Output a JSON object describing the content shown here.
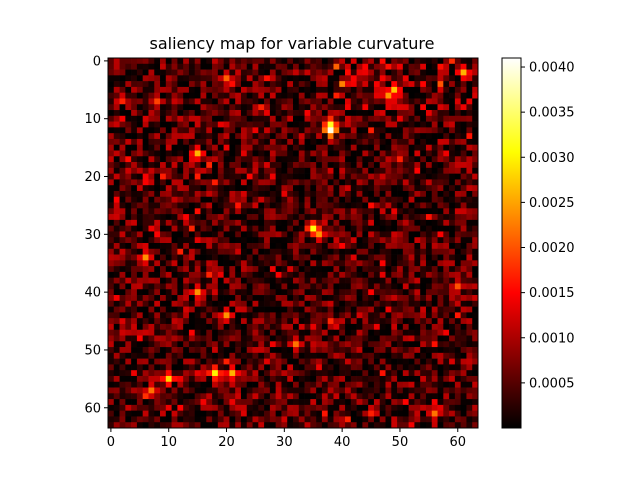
{
  "chart_data": {
    "type": "heatmap",
    "title": "saliency map for variable curvature",
    "xlabel": "",
    "ylabel": "",
    "rows": 64,
    "cols": 64,
    "xlim": [
      -0.5,
      63.5
    ],
    "ylim": [
      63.5,
      -0.5
    ],
    "x_ticks": [
      0,
      10,
      20,
      30,
      40,
      50,
      60
    ],
    "y_ticks": [
      0,
      10,
      20,
      30,
      40,
      50,
      60
    ],
    "colormap": "hot",
    "vmin": 0.0,
    "vmax": 0.0041,
    "colorbar_ticks": [
      "0.0005",
      "0.0010",
      "0.0015",
      "0.0020",
      "0.0025",
      "0.0030",
      "0.0035",
      "0.0040"
    ],
    "colorbar_tick_values": [
      0.0005,
      0.001,
      0.0015,
      0.002,
      0.0025,
      0.003,
      0.0035,
      0.004
    ],
    "value_note": "values approximated; dense noisy saliency map with typical values 0–0.0015",
    "hotspots": [
      {
        "row": 12,
        "col": 38,
        "value": 0.004
      },
      {
        "row": 11,
        "col": 38,
        "value": 0.0032
      },
      {
        "row": 5,
        "col": 49,
        "value": 0.0027
      },
      {
        "row": 6,
        "col": 48,
        "value": 0.0024
      },
      {
        "row": 2,
        "col": 61,
        "value": 0.0026
      },
      {
        "row": 29,
        "col": 35,
        "value": 0.0031
      },
      {
        "row": 30,
        "col": 36,
        "value": 0.0024
      },
      {
        "row": 16,
        "col": 15,
        "value": 0.0026
      },
      {
        "row": 34,
        "col": 6,
        "value": 0.0024
      },
      {
        "row": 40,
        "col": 15,
        "value": 0.0024
      },
      {
        "row": 44,
        "col": 20,
        "value": 0.0024
      },
      {
        "row": 54,
        "col": 18,
        "value": 0.003
      },
      {
        "row": 54,
        "col": 21,
        "value": 0.0026
      },
      {
        "row": 55,
        "col": 10,
        "value": 0.0028
      },
      {
        "row": 57,
        "col": 7,
        "value": 0.0022
      },
      {
        "row": 49,
        "col": 32,
        "value": 0.0022
      },
      {
        "row": 61,
        "col": 56,
        "value": 0.0022
      },
      {
        "row": 39,
        "col": 60,
        "value": 0.002
      },
      {
        "row": 3,
        "col": 20,
        "value": 0.0021
      },
      {
        "row": 7,
        "col": 8,
        "value": 0.0019
      }
    ]
  }
}
